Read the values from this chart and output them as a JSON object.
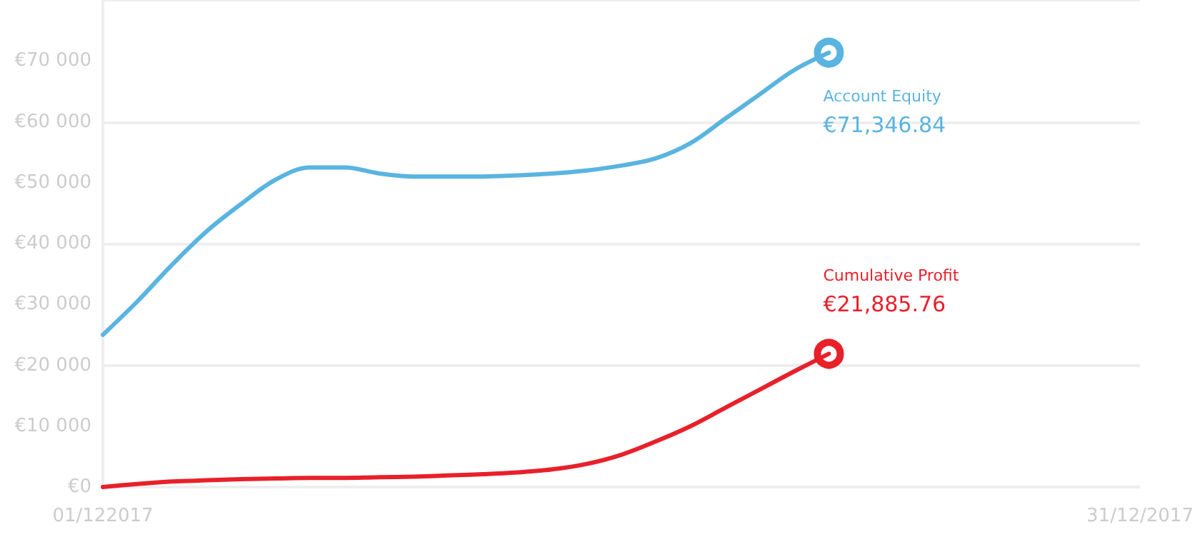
{
  "chart_data": {
    "type": "line",
    "categories": [
      "01/122017",
      null,
      null,
      null,
      null,
      null,
      null,
      null,
      null,
      null,
      null,
      null,
      null,
      null,
      null,
      null,
      null,
      null,
      null,
      null,
      null,
      null,
      null,
      null,
      null,
      null,
      null,
      null,
      null,
      null,
      "31/12/2017"
    ],
    "ylim": [
      0,
      80000
    ],
    "yticks": [
      {
        "value": 0,
        "label": "€0"
      },
      {
        "value": 10000,
        "label": "€10 000"
      },
      {
        "value": 20000,
        "label": "€20 000"
      },
      {
        "value": 30000,
        "label": "€30 000"
      },
      {
        "value": 40000,
        "label": "€40 000"
      },
      {
        "value": 50000,
        "label": "€50 000"
      },
      {
        "value": 60000,
        "label": "€60 000"
      },
      {
        "value": 70000,
        "label": "€70 000"
      }
    ],
    "grid": "y",
    "legend": false,
    "marker": "none",
    "line_style": "solid",
    "series": [
      {
        "name": "Account Equity",
        "color": "#5ab4e0",
        "values": [
          25000,
          30500,
          36500,
          42000,
          46500,
          50500,
          52500,
          52500,
          51500,
          51000,
          51000,
          51000,
          51200,
          51500,
          52000,
          52800,
          54000,
          56500,
          60500,
          64500,
          68500,
          71346.84,
          null,
          null,
          null,
          null,
          null,
          null,
          null,
          null,
          null
        ],
        "value_labels": [
          null,
          null,
          null,
          null,
          null,
          null,
          null,
          null,
          null,
          null,
          null,
          null,
          null,
          null,
          null,
          null,
          null,
          null,
          null,
          null,
          null,
          "€71,346.84",
          null,
          null,
          null,
          null,
          null,
          null,
          null,
          null,
          null
        ]
      },
      {
        "name": "Cumulative Profit",
        "color": "#e8202a",
        "values": [
          0,
          500,
          900,
          1100,
          1300,
          1400,
          1500,
          1500,
          1600,
          1700,
          1900,
          2100,
          2400,
          2900,
          3800,
          5300,
          7500,
          10000,
          13000,
          16000,
          19000,
          21885.76,
          null,
          null,
          null,
          null,
          null,
          null,
          null,
          null,
          null
        ],
        "value_labels": [
          null,
          null,
          null,
          null,
          null,
          null,
          null,
          null,
          null,
          null,
          null,
          null,
          null,
          null,
          null,
          null,
          null,
          null,
          null,
          null,
          null,
          "€21,885.76",
          null,
          null,
          null,
          null,
          null,
          null,
          null,
          null,
          null
        ]
      }
    ]
  }
}
